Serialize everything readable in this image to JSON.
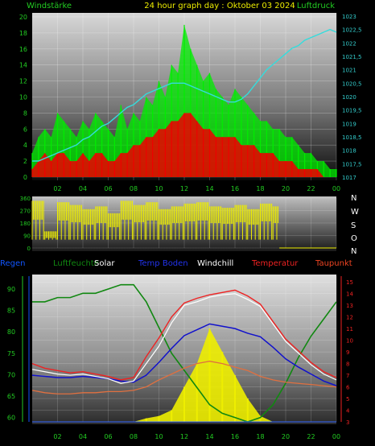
{
  "header": {
    "title": "24 hour graph day : Oktober 03 2024",
    "left_label": "Windstärke",
    "right_label": "Luftdruck"
  },
  "direction_labels": [
    "N",
    "W",
    "S",
    "O",
    "N"
  ],
  "legend": {
    "regen": "Regen",
    "luftfeuchte": "Luftfeuchte",
    "solar": "Solar",
    "temp_boden": "Temp Boden",
    "windchill": "Windchill",
    "temperatur": "Temperatur",
    "taupunkt": "Taupunkt"
  },
  "colors": {
    "wind_gust": "#00ee00",
    "wind_avg": "#ee0000",
    "pressure": "#33dddd",
    "direction": "#eeee00",
    "humidity": "#118811",
    "solar": "#eeee00",
    "temp_boden": "#1111cc",
    "windchill": "#ffffff",
    "temperatur": "#ee2222",
    "taupunkt": "#e07040",
    "left_axis_text": "#22cc22",
    "right_axis_text": "#33cccc",
    "bottom_right_axis": "#ee2222",
    "regen_axis": "#1155ff"
  },
  "chart_data": [
    {
      "type": "line",
      "name": "wind",
      "x_ticks": [
        "02",
        "04",
        "06",
        "08",
        "10",
        "12",
        "14",
        "16",
        "18",
        "20",
        "22",
        "00"
      ],
      "y_left_ticks": [
        "0",
        "2",
        "4",
        "6",
        "8",
        "10",
        "12",
        "14",
        "16",
        "18",
        "20"
      ],
      "y_right_ticks": [
        "1017",
        "1017,5",
        "1018",
        "1018,5",
        "1019",
        "1019,5",
        "1020",
        "1020,5",
        "1021",
        "1021,5",
        "1022",
        "1022,5",
        "1023"
      ],
      "ylim_left": [
        0,
        20.5
      ],
      "ylim_right": [
        1017,
        1023
      ],
      "x": [
        0,
        0.5,
        1,
        1.5,
        2,
        2.5,
        3,
        3.5,
        4,
        4.5,
        5,
        5.5,
        6,
        6.5,
        7,
        7.5,
        8,
        8.5,
        9,
        9.5,
        10,
        10.5,
        11,
        11.5,
        12,
        12.5,
        13,
        13.5,
        14,
        14.5,
        15,
        15.5,
        16,
        16.5,
        17,
        17.5,
        18,
        18.5,
        19,
        19.5,
        20,
        20.5,
        21,
        21.5,
        22,
        22.5,
        23,
        23.5,
        24
      ],
      "gust": [
        3,
        5,
        6,
        5,
        8,
        7,
        6,
        5,
        7,
        6,
        8,
        7,
        6,
        5,
        9,
        6,
        8,
        7,
        10,
        9,
        12,
        10,
        14,
        13,
        19,
        16,
        14,
        12,
        13,
        11,
        10,
        9,
        11,
        10,
        9,
        8,
        7,
        7,
        6,
        6,
        5,
        5,
        4,
        3,
        3,
        2,
        2,
        1,
        1
      ],
      "avg": [
        1,
        2,
        3,
        2,
        3,
        3,
        2,
        2,
        3,
        2,
        3,
        3,
        2,
        2,
        3,
        3,
        4,
        4,
        5,
        5,
        6,
        6,
        7,
        7,
        8,
        8,
        7,
        6,
        6,
        5,
        5,
        5,
        5,
        4,
        4,
        4,
        3,
        3,
        3,
        2,
        2,
        2,
        1,
        1,
        1,
        1,
        0,
        0,
        0
      ],
      "pressure": [
        1017.6,
        1017.6,
        1017.7,
        1017.8,
        1017.9,
        1018.0,
        1018.1,
        1018.2,
        1018.4,
        1018.5,
        1018.7,
        1018.9,
        1019.0,
        1019.2,
        1019.4,
        1019.6,
        1019.7,
        1019.9,
        1020.1,
        1020.2,
        1020.3,
        1020.4,
        1020.5,
        1020.5,
        1020.5,
        1020.4,
        1020.3,
        1020.2,
        1020.1,
        1020.0,
        1019.9,
        1019.8,
        1019.8,
        1019.9,
        1020.1,
        1020.4,
        1020.7,
        1021.0,
        1021.2,
        1021.4,
        1021.6,
        1021.8,
        1021.9,
        1022.1,
        1022.2,
        1022.3,
        1022.4,
        1022.5,
        1022.4
      ]
    },
    {
      "type": "line",
      "name": "direction",
      "y_ticks": [
        "0",
        "90",
        "180",
        "270",
        "360"
      ],
      "ylim": [
        0,
        360
      ],
      "x": [
        0,
        1,
        2,
        3,
        4,
        5,
        6,
        7,
        8,
        9,
        10,
        11,
        12,
        13,
        14,
        15,
        16,
        17,
        18,
        19,
        19.5,
        20,
        22,
        24
      ],
      "direction": [
        340,
        120,
        330,
        310,
        280,
        300,
        250,
        340,
        310,
        330,
        280,
        300,
        320,
        330,
        300,
        290,
        310,
        280,
        320,
        300,
        0,
        0,
        0,
        0
      ]
    },
    {
      "type": "line",
      "name": "weather",
      "y_left_ticks": [
        "60",
        "65",
        "70",
        "75",
        "80",
        "85",
        "90"
      ],
      "ylim_left": [
        59,
        93
      ],
      "y_right_ticks": [
        "3",
        "4",
        "5",
        "6",
        "7",
        "8",
        "9",
        "10",
        "11",
        "12",
        "13",
        "14",
        "15"
      ],
      "ylim_right": [
        3,
        15.5
      ],
      "x": [
        0,
        1,
        2,
        3,
        4,
        5,
        6,
        7,
        8,
        9,
        10,
        11,
        12,
        13,
        14,
        15,
        16,
        17,
        18,
        19,
        20,
        21,
        22,
        23,
        24
      ],
      "luftfeuchte": [
        87,
        87,
        88,
        88,
        89,
        89,
        90,
        91,
        91,
        87,
        81,
        75,
        71,
        67,
        63,
        61,
        60,
        59,
        60,
        63,
        68,
        74,
        79,
        83,
        87
      ],
      "temperatur": [
        8.0,
        7.6,
        7.4,
        7.2,
        7.3,
        7.1,
        6.9,
        6.6,
        6.8,
        8.6,
        10.2,
        12.0,
        13.2,
        13.6,
        13.9,
        14.1,
        14.3,
        13.8,
        13.1,
        11.6,
        10.1,
        9.1,
        8.1,
        7.3,
        6.8
      ],
      "windchill": [
        7.5,
        7.3,
        7.1,
        7.0,
        7.1,
        6.9,
        6.7,
        6.3,
        6.5,
        8.0,
        9.5,
        11.5,
        13.0,
        13.3,
        13.7,
        13.9,
        14.0,
        13.5,
        12.9,
        11.4,
        9.9,
        8.9,
        7.9,
        7.1,
        6.6
      ],
      "temp_boden": [
        7.0,
        6.9,
        6.8,
        6.8,
        6.9,
        6.8,
        6.7,
        6.5,
        6.4,
        7.0,
        8.1,
        9.3,
        10.4,
        10.9,
        11.4,
        11.2,
        11.0,
        10.6,
        10.3,
        9.4,
        8.4,
        7.7,
        7.1,
        6.5,
        6.1
      ],
      "taupunkt": [
        5.7,
        5.5,
        5.4,
        5.4,
        5.5,
        5.5,
        5.6,
        5.6,
        5.7,
        6.0,
        6.6,
        7.1,
        7.6,
        8.0,
        8.2,
        8.0,
        7.7,
        7.4,
        6.9,
        6.6,
        6.4,
        6.3,
        6.2,
        6.1,
        6.0
      ],
      "solar": [
        0,
        0,
        0,
        0,
        0,
        0,
        0,
        0,
        0,
        0.3,
        0.5,
        1,
        3,
        5,
        8,
        6,
        4,
        2,
        0.5,
        0,
        0,
        0,
        0,
        0,
        0
      ]
    }
  ]
}
